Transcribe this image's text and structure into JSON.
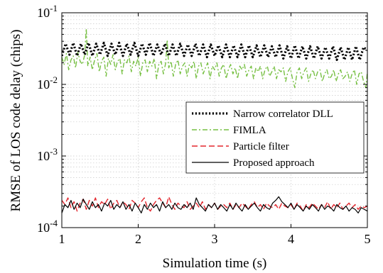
{
  "chart_data": {
    "type": "line",
    "title": "",
    "xlabel": "Simulation time (s)",
    "ylabel": "RMSE of LOS code delay (chips)",
    "xlim": [
      1,
      5
    ],
    "ylim": [
      0.0001,
      0.1
    ],
    "yscale": "log",
    "grid": true,
    "legend_position": "center-right",
    "x_ticks": [
      {
        "value": 1,
        "label": "1"
      },
      {
        "value": 2,
        "label": "2"
      },
      {
        "value": 3,
        "label": "3"
      },
      {
        "value": 4,
        "label": "4"
      },
      {
        "value": 5,
        "label": "5"
      }
    ],
    "y_ticks": [
      {
        "value": 0.0001,
        "base": "10",
        "exp": "-4"
      },
      {
        "value": 0.001,
        "base": "10",
        "exp": "-3"
      },
      {
        "value": 0.01,
        "base": "10",
        "exp": "-2"
      },
      {
        "value": 0.1,
        "base": "10",
        "exp": "-1"
      }
    ],
    "series": [
      {
        "name": "Narrow correlator DLL",
        "color": "#000000",
        "style": "dotted",
        "x": [
          1.0,
          1.05,
          1.1,
          1.15,
          1.2,
          1.25,
          1.3,
          1.35,
          1.4,
          1.45,
          1.5,
          1.55,
          1.6,
          1.65,
          1.7,
          1.75,
          1.8,
          1.85,
          1.9,
          1.95,
          2.0,
          2.05,
          2.1,
          2.15,
          2.2,
          2.25,
          2.3,
          2.35,
          2.4,
          2.45,
          2.5,
          2.55,
          2.6,
          2.65,
          2.7,
          2.75,
          2.8,
          2.85,
          2.9,
          2.95,
          3.0,
          3.05,
          3.1,
          3.15,
          3.2,
          3.25,
          3.3,
          3.35,
          3.4,
          3.45,
          3.5,
          3.55,
          3.6,
          3.65,
          3.7,
          3.75,
          3.8,
          3.85,
          3.9,
          3.95,
          4.0,
          4.05,
          4.1,
          4.15,
          4.2,
          4.25,
          4.3,
          4.35,
          4.4,
          4.45,
          4.5,
          4.55,
          4.6,
          4.65,
          4.7,
          4.75,
          4.8,
          4.85,
          4.9,
          4.95,
          5.0
        ],
        "y": [
          0.025,
          0.037,
          0.026,
          0.038,
          0.025,
          0.037,
          0.026,
          0.038,
          0.025,
          0.037,
          0.026,
          0.038,
          0.025,
          0.037,
          0.026,
          0.038,
          0.025,
          0.037,
          0.026,
          0.038,
          0.025,
          0.037,
          0.026,
          0.038,
          0.025,
          0.036,
          0.026,
          0.037,
          0.025,
          0.036,
          0.025,
          0.037,
          0.025,
          0.036,
          0.025,
          0.037,
          0.025,
          0.036,
          0.024,
          0.036,
          0.025,
          0.035,
          0.024,
          0.036,
          0.024,
          0.035,
          0.024,
          0.036,
          0.024,
          0.035,
          0.024,
          0.035,
          0.024,
          0.035,
          0.024,
          0.034,
          0.024,
          0.035,
          0.023,
          0.034,
          0.023,
          0.035,
          0.023,
          0.034,
          0.023,
          0.034,
          0.023,
          0.034,
          0.023,
          0.033,
          0.023,
          0.034,
          0.022,
          0.033,
          0.022,
          0.033,
          0.022,
          0.034,
          0.022,
          0.033,
          0.03
        ]
      },
      {
        "name": "FIMLA",
        "color": "#77C043",
        "style": "dashdot",
        "x": [
          1.0,
          1.03,
          1.06,
          1.09,
          1.12,
          1.15,
          1.18,
          1.21,
          1.24,
          1.27,
          1.3,
          1.32,
          1.34,
          1.37,
          1.4,
          1.43,
          1.46,
          1.49,
          1.52,
          1.55,
          1.58,
          1.61,
          1.64,
          1.67,
          1.7,
          1.73,
          1.76,
          1.79,
          1.82,
          1.85,
          1.88,
          1.91,
          1.94,
          1.97,
          2.0,
          2.03,
          2.06,
          2.09,
          2.12,
          2.15,
          2.18,
          2.21,
          2.24,
          2.27,
          2.3,
          2.33,
          2.36,
          2.38,
          2.4,
          2.43,
          2.46,
          2.49,
          2.52,
          2.55,
          2.58,
          2.61,
          2.64,
          2.67,
          2.7,
          2.73,
          2.76,
          2.79,
          2.82,
          2.85,
          2.88,
          2.91,
          2.94,
          2.97,
          3.0,
          3.03,
          3.06,
          3.09,
          3.12,
          3.15,
          3.18,
          3.21,
          3.24,
          3.27,
          3.3,
          3.33,
          3.36,
          3.39,
          3.42,
          3.45,
          3.48,
          3.51,
          3.54,
          3.57,
          3.6,
          3.63,
          3.66,
          3.69,
          3.72,
          3.75,
          3.78,
          3.81,
          3.84,
          3.87,
          3.9,
          3.93,
          3.96,
          3.99,
          4.02,
          4.05,
          4.08,
          4.11,
          4.14,
          4.17,
          4.2,
          4.23,
          4.26,
          4.29,
          4.32,
          4.35,
          4.38,
          4.41,
          4.44,
          4.47,
          4.5,
          4.53,
          4.56,
          4.59,
          4.62,
          4.65,
          4.68,
          4.71,
          4.74,
          4.77,
          4.8,
          4.83,
          4.86,
          4.89,
          4.92,
          4.95,
          4.98,
          5.0
        ],
        "y": [
          0.024,
          0.019,
          0.027,
          0.016,
          0.022,
          0.025,
          0.017,
          0.028,
          0.021,
          0.019,
          0.026,
          0.06,
          0.018,
          0.024,
          0.016,
          0.022,
          0.027,
          0.015,
          0.021,
          0.024,
          0.013,
          0.023,
          0.019,
          0.026,
          0.016,
          0.021,
          0.023,
          0.014,
          0.022,
          0.02,
          0.025,
          0.015,
          0.021,
          0.018,
          0.024,
          0.013,
          0.02,
          0.022,
          0.015,
          0.021,
          0.018,
          0.023,
          0.012,
          0.019,
          0.021,
          0.014,
          0.02,
          0.042,
          0.017,
          0.021,
          0.013,
          0.019,
          0.022,
          0.014,
          0.018,
          0.02,
          0.013,
          0.019,
          0.017,
          0.021,
          0.012,
          0.018,
          0.02,
          0.014,
          0.017,
          0.02,
          0.012,
          0.018,
          0.016,
          0.02,
          0.013,
          0.017,
          0.019,
          0.012,
          0.016,
          0.019,
          0.014,
          0.017,
          0.012,
          0.018,
          0.016,
          0.019,
          0.013,
          0.016,
          0.018,
          0.012,
          0.017,
          0.015,
          0.018,
          0.012,
          0.016,
          0.018,
          0.013,
          0.015,
          0.018,
          0.012,
          0.016,
          0.015,
          0.017,
          0.011,
          0.015,
          0.017,
          0.012,
          0.009,
          0.015,
          0.017,
          0.012,
          0.015,
          0.017,
          0.011,
          0.014,
          0.016,
          0.012,
          0.015,
          0.016,
          0.011,
          0.014,
          0.016,
          0.012,
          0.013,
          0.016,
          0.011,
          0.014,
          0.016,
          0.012,
          0.013,
          0.015,
          0.011,
          0.014,
          0.016,
          0.01,
          0.014,
          0.015,
          0.011,
          0.009,
          0.015
        ]
      },
      {
        "name": "Particle filter",
        "color": "#E3262D",
        "style": "dashed",
        "x": [
          1.0,
          1.04,
          1.08,
          1.12,
          1.16,
          1.2,
          1.24,
          1.28,
          1.32,
          1.36,
          1.4,
          1.44,
          1.48,
          1.52,
          1.56,
          1.6,
          1.64,
          1.68,
          1.72,
          1.76,
          1.8,
          1.84,
          1.88,
          1.92,
          1.96,
          2.0,
          2.04,
          2.08,
          2.12,
          2.16,
          2.2,
          2.24,
          2.28,
          2.32,
          2.36,
          2.4,
          2.44,
          2.48,
          2.52,
          2.56,
          2.6,
          2.64,
          2.68,
          2.72,
          2.76,
          2.8,
          2.84,
          2.88,
          2.92,
          2.96,
          3.0,
          3.04,
          3.08,
          3.12,
          3.16,
          3.2,
          3.24,
          3.28,
          3.32,
          3.36,
          3.4,
          3.44,
          3.48,
          3.52,
          3.56,
          3.6,
          3.64,
          3.68,
          3.72,
          3.76,
          3.8,
          3.84,
          3.88,
          3.92,
          3.96,
          4.0,
          4.04,
          4.08,
          4.12,
          4.16,
          4.2,
          4.24,
          4.28,
          4.32,
          4.36,
          4.4,
          4.44,
          4.48,
          4.52,
          4.56,
          4.6,
          4.64,
          4.68,
          4.72,
          4.76,
          4.8,
          4.84,
          4.88,
          4.92,
          4.96,
          5.0
        ],
        "y": [
          0.00024,
          0.00021,
          0.00026,
          0.00019,
          0.00023,
          0.00017,
          0.00022,
          0.00025,
          0.00018,
          0.00024,
          0.0002,
          0.00026,
          0.00019,
          0.00023,
          0.00021,
          0.00025,
          0.00018,
          0.00022,
          0.00024,
          0.00019,
          0.00023,
          0.00021,
          0.00018,
          0.00024,
          0.00022,
          0.00019,
          0.00023,
          0.00026,
          0.00019,
          0.00017,
          0.00021,
          0.00024,
          0.00026,
          0.00022,
          0.00019,
          0.00027,
          0.00021,
          0.00018,
          0.00022,
          0.0002,
          0.00019,
          0.00023,
          0.00018,
          0.0002,
          0.00022,
          0.00019,
          0.00023,
          0.00018,
          0.00021,
          0.00019,
          0.00022,
          0.00018,
          0.0002,
          0.00021,
          0.00019,
          0.00022,
          0.00018,
          0.00021,
          0.00019,
          0.00022,
          0.0002,
          0.00018,
          0.00021,
          0.00023,
          0.00019,
          0.00021,
          0.00018,
          0.00022,
          0.0002,
          0.00019,
          0.00021,
          0.00018,
          0.00022,
          0.0002,
          0.00019,
          0.00021,
          0.00018,
          0.00022,
          0.0002,
          0.00017,
          0.00021,
          0.00019,
          0.00022,
          0.0002,
          0.00018,
          0.00021,
          0.00019,
          0.00023,
          0.00018,
          0.00021,
          0.00019,
          0.00022,
          0.00018,
          0.0002,
          0.00022,
          0.00019,
          0.00021,
          0.00018,
          0.0002,
          0.00019,
          0.0002
        ]
      },
      {
        "name": "Proposed approach",
        "color": "#000000",
        "style": "solid",
        "x": [
          1.0,
          1.04,
          1.08,
          1.12,
          1.16,
          1.2,
          1.24,
          1.28,
          1.32,
          1.36,
          1.4,
          1.44,
          1.48,
          1.52,
          1.56,
          1.6,
          1.64,
          1.68,
          1.72,
          1.76,
          1.8,
          1.84,
          1.88,
          1.92,
          1.96,
          2.0,
          2.04,
          2.08,
          2.12,
          2.16,
          2.2,
          2.24,
          2.28,
          2.32,
          2.36,
          2.4,
          2.44,
          2.48,
          2.52,
          2.56,
          2.6,
          2.64,
          2.68,
          2.72,
          2.76,
          2.8,
          2.84,
          2.88,
          2.92,
          2.96,
          3.0,
          3.04,
          3.08,
          3.12,
          3.16,
          3.2,
          3.24,
          3.28,
          3.32,
          3.36,
          3.4,
          3.44,
          3.48,
          3.52,
          3.56,
          3.6,
          3.64,
          3.68,
          3.72,
          3.76,
          3.8,
          3.84,
          3.88,
          3.92,
          3.96,
          4.0,
          4.04,
          4.08,
          4.12,
          4.16,
          4.2,
          4.24,
          4.28,
          4.32,
          4.36,
          4.4,
          4.44,
          4.48,
          4.52,
          4.56,
          4.6,
          4.64,
          4.68,
          4.72,
          4.76,
          4.8,
          4.84,
          4.88,
          4.92,
          4.96,
          5.0
        ],
        "y": [
          0.00016,
          0.00021,
          0.00019,
          0.00024,
          0.00018,
          0.00022,
          0.00019,
          0.00025,
          0.00021,
          0.00018,
          0.00023,
          0.00019,
          0.00021,
          0.00017,
          0.00022,
          0.0002,
          0.00024,
          0.00018,
          0.00021,
          0.00019,
          0.00023,
          0.00018,
          0.00021,
          0.00017,
          0.00022,
          0.00019,
          0.00016,
          0.00021,
          0.00018,
          0.00022,
          0.00019,
          0.00021,
          0.00017,
          0.00023,
          0.00019,
          0.00021,
          0.00018,
          0.00022,
          0.00019,
          0.00018,
          0.00021,
          0.00019,
          0.00022,
          0.00018,
          0.00026,
          0.00021,
          0.00019,
          0.00017,
          0.00021,
          0.00019,
          0.00022,
          0.00018,
          0.00021,
          0.00019,
          0.00017,
          0.00021,
          0.00018,
          0.00022,
          0.00019,
          0.00017,
          0.00021,
          0.00018,
          0.0002,
          0.00022,
          0.00019,
          0.00017,
          0.00021,
          0.00019,
          0.00018,
          0.00022,
          0.00024,
          0.00027,
          0.00023,
          0.00021,
          0.00019,
          0.00022,
          0.00018,
          0.00021,
          0.00019,
          0.00017,
          0.0002,
          0.00018,
          0.00021,
          0.00019,
          0.00017,
          0.00021,
          0.00018,
          0.0002,
          0.00019,
          0.00017,
          0.00021,
          0.00019,
          0.00018,
          0.0002,
          0.00017,
          0.00019,
          0.00018,
          0.00016,
          0.00019,
          0.00018,
          0.00017
        ]
      }
    ]
  }
}
